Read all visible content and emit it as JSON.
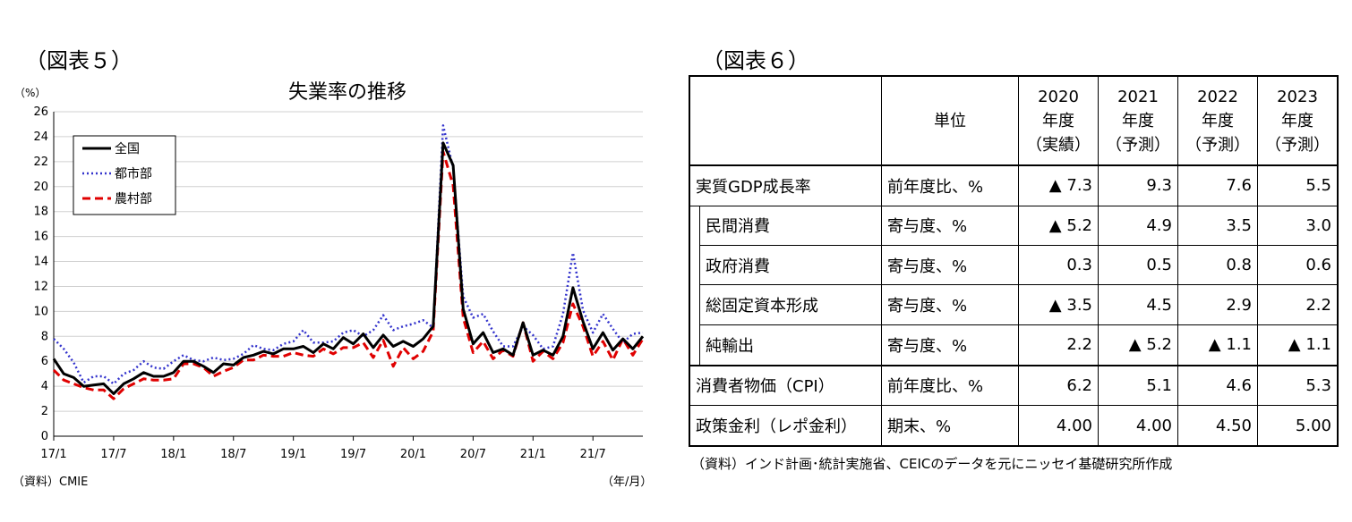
{
  "left": {
    "fig_label": "（図表５）",
    "source": "（資料）CMIE",
    "unit_note": "（年/月）"
  },
  "right": {
    "fig_label": "（図表６）",
    "source": "（資料）インド計画･統計実施省、CEICのデータを元にニッセイ基礎研究所作成",
    "header": {
      "unit": "単位",
      "years": [
        {
          "year": "2020",
          "suffix": "年度",
          "kind": "（実績）"
        },
        {
          "year": "2021",
          "suffix": "年度",
          "kind": "（予測）"
        },
        {
          "year": "2022",
          "suffix": "年度",
          "kind": "（予測）"
        },
        {
          "year": "2023",
          "suffix": "年度",
          "kind": "（予測）"
        }
      ]
    },
    "rows": [
      {
        "label": "実質GDP成長率",
        "unit": "前年度比、%",
        "values": [
          "▲ 7.3",
          "9.3",
          "7.6",
          "5.5"
        ],
        "sub": false
      },
      {
        "label": "民間消費",
        "unit": "寄与度、%",
        "values": [
          "▲ 5.2",
          "4.9",
          "3.5",
          "3.0"
        ],
        "sub": true
      },
      {
        "label": "政府消費",
        "unit": "寄与度、%",
        "values": [
          "0.3",
          "0.5",
          "0.8",
          "0.6"
        ],
        "sub": true
      },
      {
        "label": "総固定資本形成",
        "unit": "寄与度、%",
        "values": [
          "▲ 3.5",
          "4.5",
          "2.9",
          "2.2"
        ],
        "sub": true
      },
      {
        "label": "純輸出",
        "unit": "寄与度、%",
        "values": [
          "2.2",
          "▲ 5.2",
          "▲ 1.1",
          "▲ 1.1"
        ],
        "sub": true
      },
      {
        "label": "消費者物価（CPI）",
        "unit": "前年度比、%",
        "values": [
          "6.2",
          "5.1",
          "4.6",
          "5.3"
        ],
        "sub": false
      },
      {
        "label": "政策金利（レポ金利）",
        "unit": "期末、%",
        "values": [
          "4.00",
          "4.00",
          "4.50",
          "5.00"
        ],
        "sub": false
      }
    ]
  },
  "chart_data": {
    "type": "line",
    "title": "失業率の推移",
    "ylabel": "（%）",
    "ylim": [
      0,
      26
    ],
    "yticks": [
      0,
      2,
      4,
      6,
      8,
      10,
      12,
      14,
      16,
      18,
      20,
      22,
      24,
      26
    ],
    "xticks": [
      "17/1",
      "17/7",
      "18/1",
      "18/7",
      "19/1",
      "19/7",
      "20/1",
      "20/7",
      "21/1",
      "21/7"
    ],
    "legend_position": "top-left",
    "grid": true,
    "x": [
      "17/1",
      "17/2",
      "17/3",
      "17/4",
      "17/5",
      "17/6",
      "17/7",
      "17/8",
      "17/9",
      "17/10",
      "17/11",
      "17/12",
      "18/1",
      "18/2",
      "18/3",
      "18/4",
      "18/5",
      "18/6",
      "18/7",
      "18/8",
      "18/9",
      "18/10",
      "18/11",
      "18/12",
      "19/1",
      "19/2",
      "19/3",
      "19/4",
      "19/5",
      "19/6",
      "19/7",
      "19/8",
      "19/9",
      "19/10",
      "19/11",
      "19/12",
      "20/1",
      "20/2",
      "20/3",
      "20/4",
      "20/5",
      "20/6",
      "20/7",
      "20/8",
      "20/9",
      "20/10",
      "20/11",
      "20/12",
      "21/1",
      "21/2",
      "21/3",
      "21/4",
      "21/5",
      "21/6",
      "21/7",
      "21/8",
      "21/9",
      "21/10",
      "21/11",
      "21/12"
    ],
    "series": [
      {
        "name": "全国",
        "color": "#000000",
        "style": "solid",
        "values": [
          6.2,
          5.0,
          4.7,
          4.0,
          4.1,
          4.2,
          3.4,
          4.2,
          4.6,
          5.1,
          4.8,
          4.8,
          5.1,
          6.0,
          6.0,
          5.6,
          5.1,
          5.8,
          5.7,
          6.3,
          6.5,
          6.8,
          6.6,
          7.0,
          7.0,
          7.2,
          6.7,
          7.4,
          7.0,
          7.9,
          7.4,
          8.2,
          7.1,
          8.1,
          7.2,
          7.6,
          7.2,
          7.8,
          8.8,
          23.5,
          21.7,
          10.2,
          7.4,
          8.3,
          6.7,
          7.0,
          6.5,
          9.1,
          6.5,
          6.9,
          6.5,
          8.0,
          11.9,
          9.2,
          7.0,
          8.3,
          6.9,
          7.8,
          7.0,
          8.0
        ]
      },
      {
        "name": "都市部",
        "color": "#3333cc",
        "style": "dotted",
        "values": [
          7.8,
          7.0,
          5.9,
          4.3,
          4.8,
          4.8,
          4.2,
          5.0,
          5.3,
          6.0,
          5.5,
          5.4,
          6.0,
          6.5,
          6.1,
          6.0,
          6.3,
          6.1,
          6.2,
          6.6,
          7.3,
          7.0,
          6.9,
          7.4,
          7.6,
          8.5,
          7.5,
          7.5,
          7.6,
          8.3,
          8.5,
          8.0,
          8.5,
          9.7,
          8.5,
          8.8,
          9.0,
          9.3,
          8.7,
          24.9,
          21.5,
          11.2,
          9.5,
          9.8,
          8.4,
          7.2,
          7.2,
          8.8,
          8.1,
          7.0,
          7.2,
          9.8,
          14.7,
          10.1,
          8.3,
          9.8,
          8.6,
          7.5,
          8.2,
          8.3
        ]
      },
      {
        "name": "農村部",
        "color": "#e00000",
        "style": "dashed",
        "values": [
          5.3,
          4.5,
          4.2,
          3.9,
          3.7,
          3.7,
          3.0,
          3.8,
          4.2,
          4.6,
          4.5,
          4.5,
          4.6,
          5.8,
          5.8,
          5.5,
          4.8,
          5.2,
          5.5,
          6.1,
          6.1,
          6.5,
          6.4,
          6.4,
          6.7,
          6.5,
          6.4,
          7.0,
          6.6,
          7.1,
          7.1,
          7.5,
          6.3,
          7.7,
          5.6,
          7.1,
          6.2,
          6.8,
          8.4,
          22.8,
          20.1,
          9.5,
          6.7,
          7.6,
          6.2,
          6.9,
          6.4,
          9.1,
          6.0,
          6.8,
          6.2,
          7.5,
          10.6,
          8.8,
          6.4,
          7.6,
          6.1,
          7.8,
          6.5,
          7.8
        ]
      }
    ]
  }
}
